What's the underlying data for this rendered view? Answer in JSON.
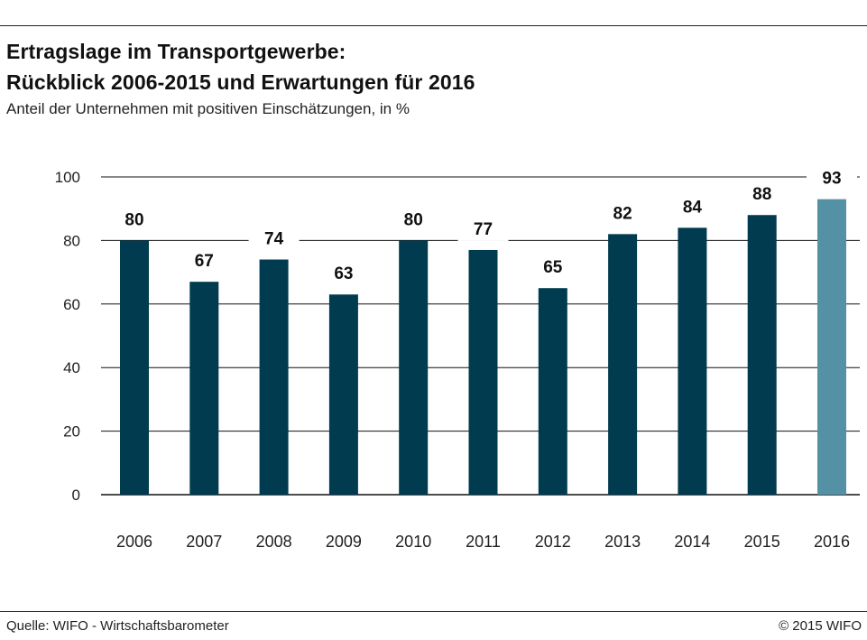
{
  "header": {
    "title_line1": "Ertragslage im Transportgewerbe:",
    "title_line2": "Rückblick 2006-2015 und Erwartungen für 2016",
    "subtitle": "Anteil der Unternehmen mit positiven Einschätzungen, in %"
  },
  "footer": {
    "source": "Quelle: WIFO - Wirtschaftsbarometer",
    "copyright": "© 2015 WIFO"
  },
  "chart_data": {
    "type": "bar",
    "categories": [
      "2006",
      "2007",
      "2008",
      "2009",
      "2010",
      "2011",
      "2012",
      "2013",
      "2014",
      "2015",
      "2016"
    ],
    "values": [
      80,
      67,
      74,
      63,
      80,
      77,
      65,
      82,
      84,
      88,
      93
    ],
    "ylim": [
      0,
      100
    ],
    "yticks": [
      0,
      20,
      40,
      60,
      80,
      100
    ],
    "grid": true,
    "colors": {
      "observed": "#003b4f",
      "expectation": "#5591a5",
      "grid": "#111111"
    },
    "highlight_category": "2016"
  }
}
